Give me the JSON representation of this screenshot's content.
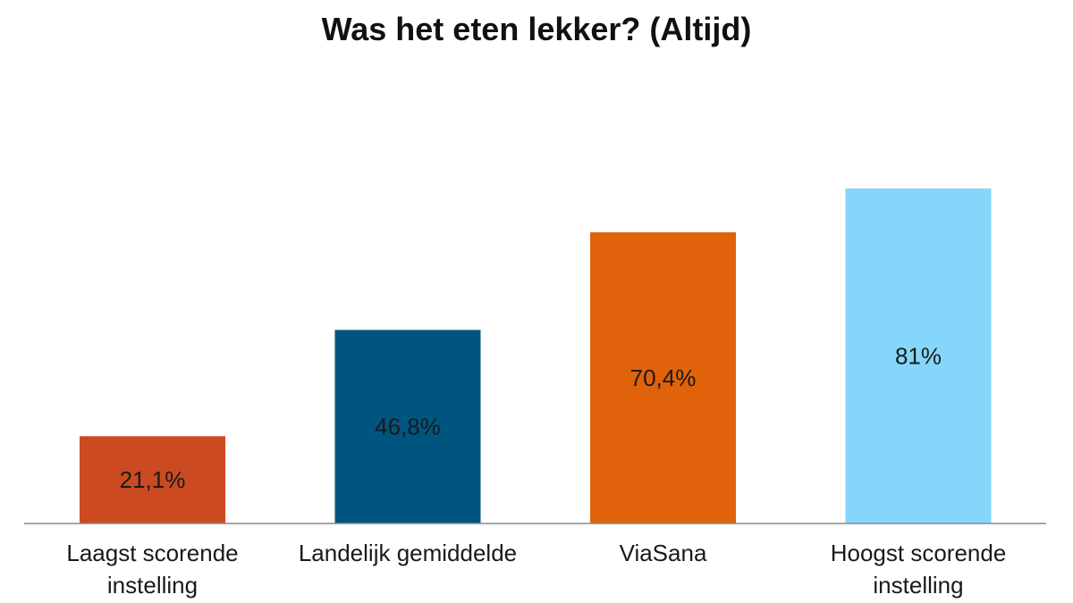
{
  "chart_data": {
    "type": "bar",
    "title": "Was het eten lekker? (Altijd)",
    "xlabel": "",
    "ylabel": "",
    "ylim": [
      0,
      100
    ],
    "grid": false,
    "categories": [
      [
        "Laagst scorende",
        "instelling"
      ],
      [
        "Landelijk gemiddelde"
      ],
      [
        "ViaSana"
      ],
      [
        "Hoogst scorende",
        "instelling"
      ]
    ],
    "values": [
      21.1,
      46.8,
      70.4,
      81
    ],
    "value_labels": [
      "21,1%",
      "46,8%",
      "70,4%",
      "81%"
    ],
    "colors": [
      "#cc4a22",
      "#00557f",
      "#e0620a",
      "#85d6fa"
    ]
  }
}
